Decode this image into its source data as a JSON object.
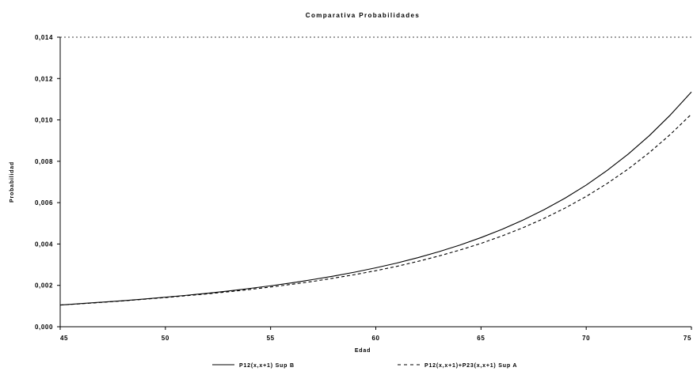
{
  "chart_data": {
    "type": "line",
    "title": "Comparativa Probabilidades",
    "xlabel": "Edad",
    "ylabel": "Probabilidad",
    "x": [
      45,
      46,
      47,
      48,
      49,
      50,
      51,
      52,
      53,
      54,
      55,
      56,
      57,
      58,
      59,
      60,
      61,
      62,
      63,
      64,
      65,
      66,
      67,
      68,
      69,
      70,
      71,
      72,
      73,
      74,
      75
    ],
    "xlim": [
      45,
      75
    ],
    "ylim": [
      0,
      0.014
    ],
    "x_ticks": [
      "45",
      "50",
      "55",
      "60",
      "65",
      "70",
      "75"
    ],
    "y_ticks": [
      "0,000",
      "0,002",
      "0,004",
      "0,006",
      "0,008",
      "0,010",
      "0,012",
      "0,014"
    ],
    "grid": false,
    "legend_position": "bottom",
    "series": [
      {
        "name": "P12(x,x+1) Sup B",
        "style": "solid",
        "color": "#000000",
        "values": [
          0.00105,
          0.00112,
          0.00119,
          0.00126,
          0.00134,
          0.00143,
          0.00152,
          0.00162,
          0.00173,
          0.00185,
          0.00198,
          0.00212,
          0.00228,
          0.00245,
          0.00264,
          0.00285,
          0.00308,
          0.00334,
          0.00363,
          0.00395,
          0.00431,
          0.00471,
          0.00516,
          0.00566,
          0.00622,
          0.00685,
          0.00756,
          0.00835,
          0.00924,
          0.01024,
          0.01135
        ]
      },
      {
        "name": "P12(x,x+1)+P23(x,x+1) Sup A",
        "style": "dashed",
        "color": "#000000",
        "values": [
          0.00105,
          0.00111,
          0.00118,
          0.00125,
          0.00133,
          0.00141,
          0.0015,
          0.00159,
          0.00169,
          0.0018,
          0.00192,
          0.00205,
          0.00219,
          0.00235,
          0.00252,
          0.00271,
          0.00292,
          0.00316,
          0.00342,
          0.00371,
          0.00403,
          0.00439,
          0.00479,
          0.00524,
          0.00574,
          0.0063,
          0.00693,
          0.00763,
          0.00842,
          0.0093,
          0.01028
        ]
      }
    ]
  }
}
